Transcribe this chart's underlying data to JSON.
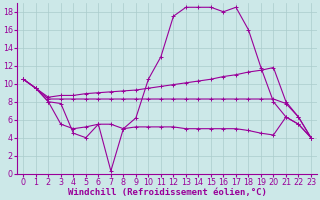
{
  "bg_color": "#cce8e8",
  "grid_color": "#aacccc",
  "line_color": "#990099",
  "marker": "+",
  "xlabel": "Windchill (Refroidissement éolien,°C)",
  "xlabel_fontsize": 6.5,
  "tick_fontsize": 5.8,
  "xlim": [
    -0.5,
    23.5
  ],
  "ylim": [
    0,
    19
  ],
  "yticks": [
    0,
    2,
    4,
    6,
    8,
    10,
    12,
    14,
    16,
    18
  ],
  "xticks": [
    0,
    1,
    2,
    3,
    4,
    5,
    6,
    7,
    8,
    9,
    10,
    11,
    12,
    13,
    14,
    15,
    16,
    17,
    18,
    19,
    20,
    21,
    22,
    23
  ],
  "series": [
    {
      "x": [
        0,
        1,
        2,
        3,
        4,
        5,
        6,
        7,
        8,
        9,
        10,
        11,
        12,
        13,
        14,
        15,
        16,
        17,
        18,
        19,
        20,
        21,
        22,
        23
      ],
      "y": [
        10.5,
        9.5,
        8.0,
        7.8,
        4.5,
        4.0,
        5.5,
        0.3,
        5.0,
        6.2,
        10.5,
        13.0,
        17.5,
        18.5,
        18.5,
        18.5,
        18.0,
        18.5,
        16.0,
        11.8,
        8.0,
        6.3,
        5.5,
        4.0
      ]
    },
    {
      "x": [
        0,
        1,
        2,
        3,
        4,
        5,
        6,
        7,
        8,
        9,
        10,
        11,
        12,
        13,
        14,
        15,
        16,
        17,
        18,
        19,
        20,
        21,
        22,
        23
      ],
      "y": [
        10.5,
        9.5,
        8.3,
        8.3,
        8.3,
        8.3,
        8.3,
        8.3,
        8.3,
        8.3,
        8.3,
        8.3,
        8.3,
        8.3,
        8.3,
        8.3,
        8.3,
        8.3,
        8.3,
        8.3,
        8.3,
        7.8,
        6.3,
        4.0
      ]
    },
    {
      "x": [
        0,
        1,
        2,
        3,
        4,
        5,
        6,
        7,
        8,
        9,
        10,
        11,
        12,
        13,
        14,
        15,
        16,
        17,
        18,
        19,
        20,
        21,
        22,
        23
      ],
      "y": [
        10.5,
        9.5,
        8.5,
        8.7,
        8.7,
        8.9,
        9.0,
        9.1,
        9.2,
        9.3,
        9.5,
        9.7,
        9.9,
        10.1,
        10.3,
        10.5,
        10.8,
        11.0,
        11.3,
        11.5,
        11.8,
        8.0,
        6.3,
        4.0
      ]
    },
    {
      "x": [
        0,
        1,
        2,
        3,
        4,
        5,
        6,
        7,
        8,
        9,
        10,
        11,
        12,
        13,
        14,
        15,
        16,
        17,
        18,
        19,
        20,
        21,
        22,
        23
      ],
      "y": [
        10.5,
        9.5,
        8.0,
        5.5,
        5.0,
        5.2,
        5.5,
        5.5,
        5.0,
        5.2,
        5.2,
        5.2,
        5.2,
        5.0,
        5.0,
        5.0,
        5.0,
        5.0,
        4.8,
        4.5,
        4.3,
        6.3,
        5.5,
        4.0
      ]
    }
  ]
}
